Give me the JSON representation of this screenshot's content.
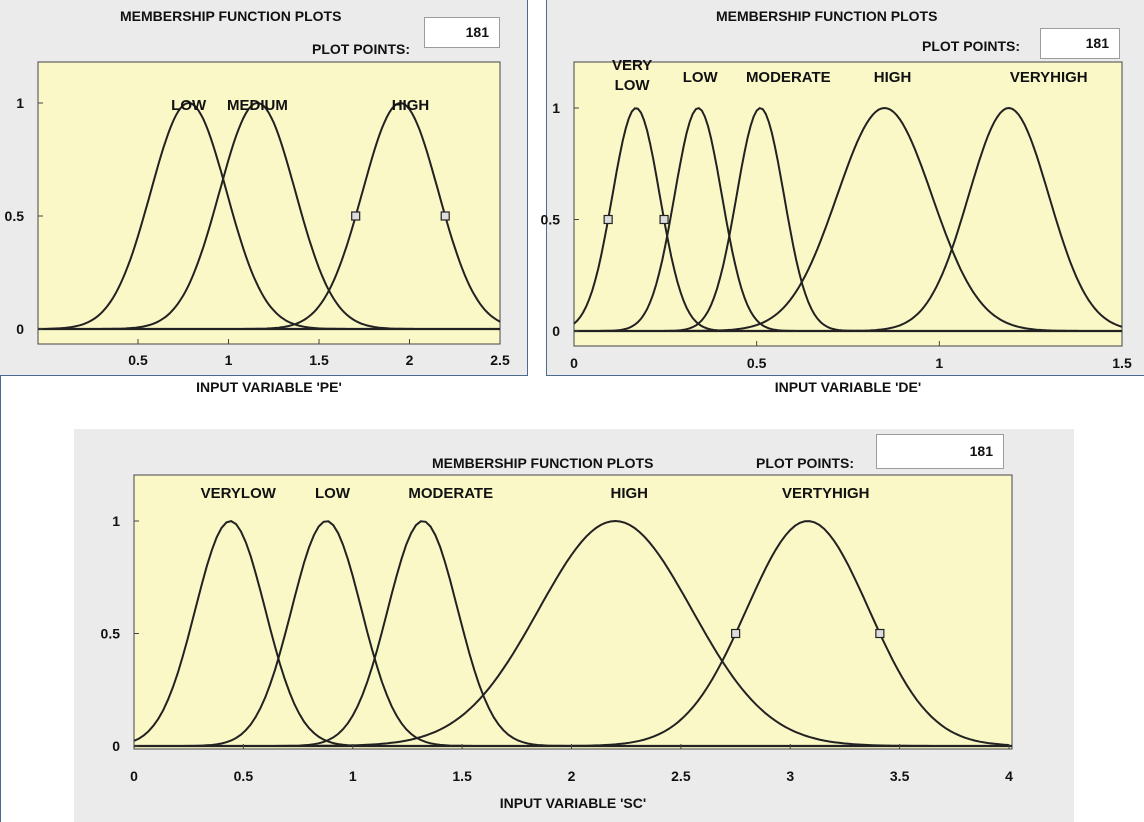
{
  "panels": [
    {
      "title": "MEMBERSHIP FUNCTION PLOTS",
      "plot_points_label": "PLOT POINTS:",
      "plot_points_value": "181",
      "xlabel": "INPUT VARIABLE 'PE'"
    },
    {
      "title": "MEMBERSHIP FUNCTION PLOTS",
      "plot_points_label": "PLOT POINTS:",
      "plot_points_value": "181",
      "xlabel": "INPUT VARIABLE 'DE'"
    },
    {
      "title": "MEMBERSHIP FUNCTION PLOTS",
      "plot_points_label": "PLOT POINTS:",
      "plot_points_value": "181",
      "xlabel": "INPUT VARIABLE 'SC'"
    }
  ],
  "chart_data": [
    {
      "type": "line",
      "xlabel": "INPUT VARIABLE 'PE'",
      "xlim": [
        0,
        2.5
      ],
      "ylim": [
        0,
        1
      ],
      "x_ticks": [
        0.5,
        1,
        1.5,
        2,
        2.5
      ],
      "y_ticks": [
        0,
        0.5,
        1
      ],
      "plot_background": "#fbf8c8",
      "line_color": "#222222",
      "series": [
        {
          "name": "LOW",
          "center": 0.78,
          "sigma": 0.21
        },
        {
          "name": "MEDIUM",
          "center": 1.16,
          "sigma": 0.21
        },
        {
          "name": "HIGH",
          "center": 1.95,
          "sigma": 0.21
        }
      ],
      "selected_series": "HIGH"
    },
    {
      "type": "line",
      "xlabel": "INPUT VARIABLE 'DE'",
      "xlim": [
        0,
        1.5
      ],
      "ylim": [
        0,
        1
      ],
      "x_ticks": [
        0,
        0.5,
        1,
        1.5
      ],
      "y_ticks": [
        0,
        0.5,
        1
      ],
      "plot_background": "#fbf8c8",
      "line_color": "#222222",
      "series": [
        {
          "name": "VERY LOW",
          "center": 0.17,
          "sigma": 0.065
        },
        {
          "name": "LOW",
          "center": 0.34,
          "sigma": 0.065
        },
        {
          "name": "MODERATE",
          "center": 0.51,
          "sigma": 0.065
        },
        {
          "name": "HIGH",
          "center": 0.85,
          "sigma": 0.13
        },
        {
          "name": "VERYHIGH",
          "center": 1.19,
          "sigma": 0.11
        }
      ],
      "selected_series": "VERY LOW"
    },
    {
      "type": "line",
      "xlabel": "INPUT VARIABLE 'SC'",
      "xlim": [
        0,
        4
      ],
      "ylim": [
        0,
        1
      ],
      "x_ticks": [
        0,
        0.5,
        1,
        1.5,
        2,
        2.5,
        3,
        3.5,
        4
      ],
      "y_ticks": [
        0,
        0.5,
        1
      ],
      "plot_background": "#fbf8c8",
      "line_color": "#222222",
      "series": [
        {
          "name": "VERYLOW",
          "center": 0.44,
          "sigma": 0.16
        },
        {
          "name": "LOW",
          "center": 0.88,
          "sigma": 0.16
        },
        {
          "name": "MODERATE",
          "center": 1.32,
          "sigma": 0.16
        },
        {
          "name": "HIGH",
          "center": 2.2,
          "sigma": 0.35
        },
        {
          "name": "VERTYHIGH",
          "center": 3.08,
          "sigma": 0.28
        }
      ],
      "selected_series": "VERTYHIGH"
    }
  ]
}
